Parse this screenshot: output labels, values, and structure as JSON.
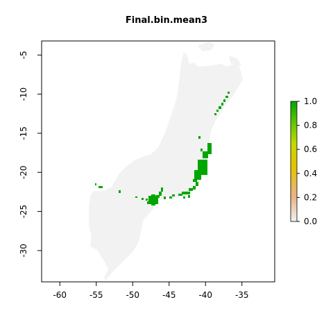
{
  "title": "Final.bin.mean3",
  "map": {
    "x_ticks": [
      {
        "value": -60,
        "label": "-60"
      },
      {
        "value": -55,
        "label": "-55"
      },
      {
        "value": -50,
        "label": "-50"
      },
      {
        "value": -45,
        "label": "-45"
      },
      {
        "value": -40,
        "label": "-40"
      },
      {
        "value": -35,
        "label": "-35"
      }
    ],
    "y_ticks": [
      {
        "value": -5,
        "label": "-5"
      },
      {
        "value": -10,
        "label": "-10"
      },
      {
        "value": -15,
        "label": "-15"
      },
      {
        "value": -20,
        "label": "-20"
      },
      {
        "value": -25,
        "label": "-25"
      },
      {
        "value": -30,
        "label": "-30"
      }
    ],
    "xlim": [
      -62.5,
      -30.5
    ],
    "ylim": [
      -34,
      -3.2
    ],
    "background_color": "#f2f2f2",
    "presence_color": "#00a600"
  },
  "legend": {
    "ticks": [
      {
        "value": 0.0,
        "label": "0.0"
      },
      {
        "value": 0.2,
        "label": "0.2"
      },
      {
        "value": 0.4,
        "label": "0.4"
      },
      {
        "value": 0.6,
        "label": "0.6"
      },
      {
        "value": 0.8,
        "label": "0.8"
      },
      {
        "value": 1.0,
        "label": "1.0"
      }
    ],
    "colors": [
      "#f2f2f2",
      "#eab48a",
      "#e6c200",
      "#c2d900",
      "#63c600",
      "#00a600"
    ]
  }
}
